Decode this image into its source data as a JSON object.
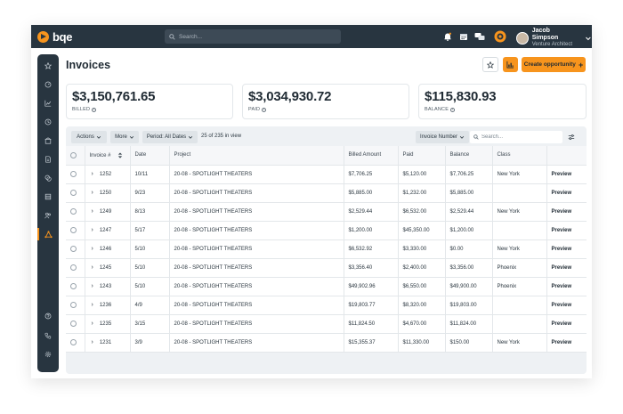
{
  "app": {
    "logo_text": "bqe",
    "search_placeholder": "Search..."
  },
  "user": {
    "name": "Jacob Simpson",
    "role": "Venture Architect"
  },
  "page": {
    "title": "Invoices",
    "create_label": "Create opportunity",
    "create_icon": "+"
  },
  "summary": [
    {
      "value": "$3,150,761.65",
      "label": "BILLED"
    },
    {
      "value": "$3,034,930.72",
      "label": "PAID"
    },
    {
      "value": "$115,830.93",
      "label": "BALANCE"
    }
  ],
  "toolbar": {
    "actions_label": "Actions",
    "more_label": "More",
    "period_label": "Period: All Dates",
    "count_text": "25 of 235 in view",
    "group_label": "Invoice Number",
    "search_placeholder": "Search..."
  },
  "table": {
    "columns": [
      "Invoice #",
      "Date",
      "Project",
      "Billed Amount",
      "Paid",
      "Balance",
      "Class",
      ""
    ],
    "rows": [
      {
        "invoice": "1252",
        "date": "10/11",
        "project": "20-08 - SPOTLIGHT THEATERS",
        "billed": "$7,706.25",
        "paid": "$5,120.00",
        "balance": "$7,706.25",
        "class": "New York",
        "action": "Preview"
      },
      {
        "invoice": "1250",
        "date": "9/23",
        "project": "20-08 - SPOTLIGHT THEATERS",
        "billed": "$5,885.00",
        "paid": "$1,232.00",
        "balance": "$5,885.00",
        "class": "",
        "action": "Preview"
      },
      {
        "invoice": "1249",
        "date": "8/13",
        "project": "20-08 - SPOTLIGHT THEATERS",
        "billed": "$2,529.44",
        "paid": "$6,532.00",
        "balance": "$2,529.44",
        "class": "New York",
        "action": "Preview"
      },
      {
        "invoice": "1247",
        "date": "5/17",
        "project": "20-08 - SPOTLIGHT THEATERS",
        "billed": "$1,200.00",
        "paid": "$45,350.00",
        "balance": "$1,200.00",
        "class": "",
        "action": "Preview"
      },
      {
        "invoice": "1246",
        "date": "5/10",
        "project": "20-08 - SPOTLIGHT THEATERS",
        "billed": "$6,532.92",
        "paid": "$3,330.00",
        "balance": "$0.00",
        "class": "New York",
        "action": "Preview"
      },
      {
        "invoice": "1245",
        "date": "5/10",
        "project": "20-08 - SPOTLIGHT THEATERS",
        "billed": "$3,356.40",
        "paid": "$2,400.00",
        "balance": "$3,356.00",
        "class": "Phoenix",
        "action": "Preview"
      },
      {
        "invoice": "1243",
        "date": "5/10",
        "project": "20-08 - SPOTLIGHT THEATERS",
        "billed": "$49,902.96",
        "paid": "$6,550.00",
        "balance": "$49,900.00",
        "class": "Phoenix",
        "action": "Preview"
      },
      {
        "invoice": "1236",
        "date": "4/9",
        "project": "20-08 - SPOTLIGHT THEATERS",
        "billed": "$19,803.77",
        "paid": "$8,320.00",
        "balance": "$19,803.00",
        "class": "",
        "action": "Preview"
      },
      {
        "invoice": "1235",
        "date": "3/15",
        "project": "20-08 - SPOTLIGHT THEATERS",
        "billed": "$11,824.50",
        "paid": "$4,670.00",
        "balance": "$11,824.00",
        "class": "",
        "action": "Preview"
      },
      {
        "invoice": "1231",
        "date": "3/9",
        "project": "20-08 - SPOTLIGHT THEATERS",
        "billed": "$15,355.37",
        "paid": "$11,330.00",
        "balance": "$150.00",
        "class": "New York",
        "action": "Preview"
      }
    ]
  },
  "colors": {
    "accent": "#f7941d",
    "nav_bg": "#283540",
    "panel_bg": "#eef1f4"
  }
}
